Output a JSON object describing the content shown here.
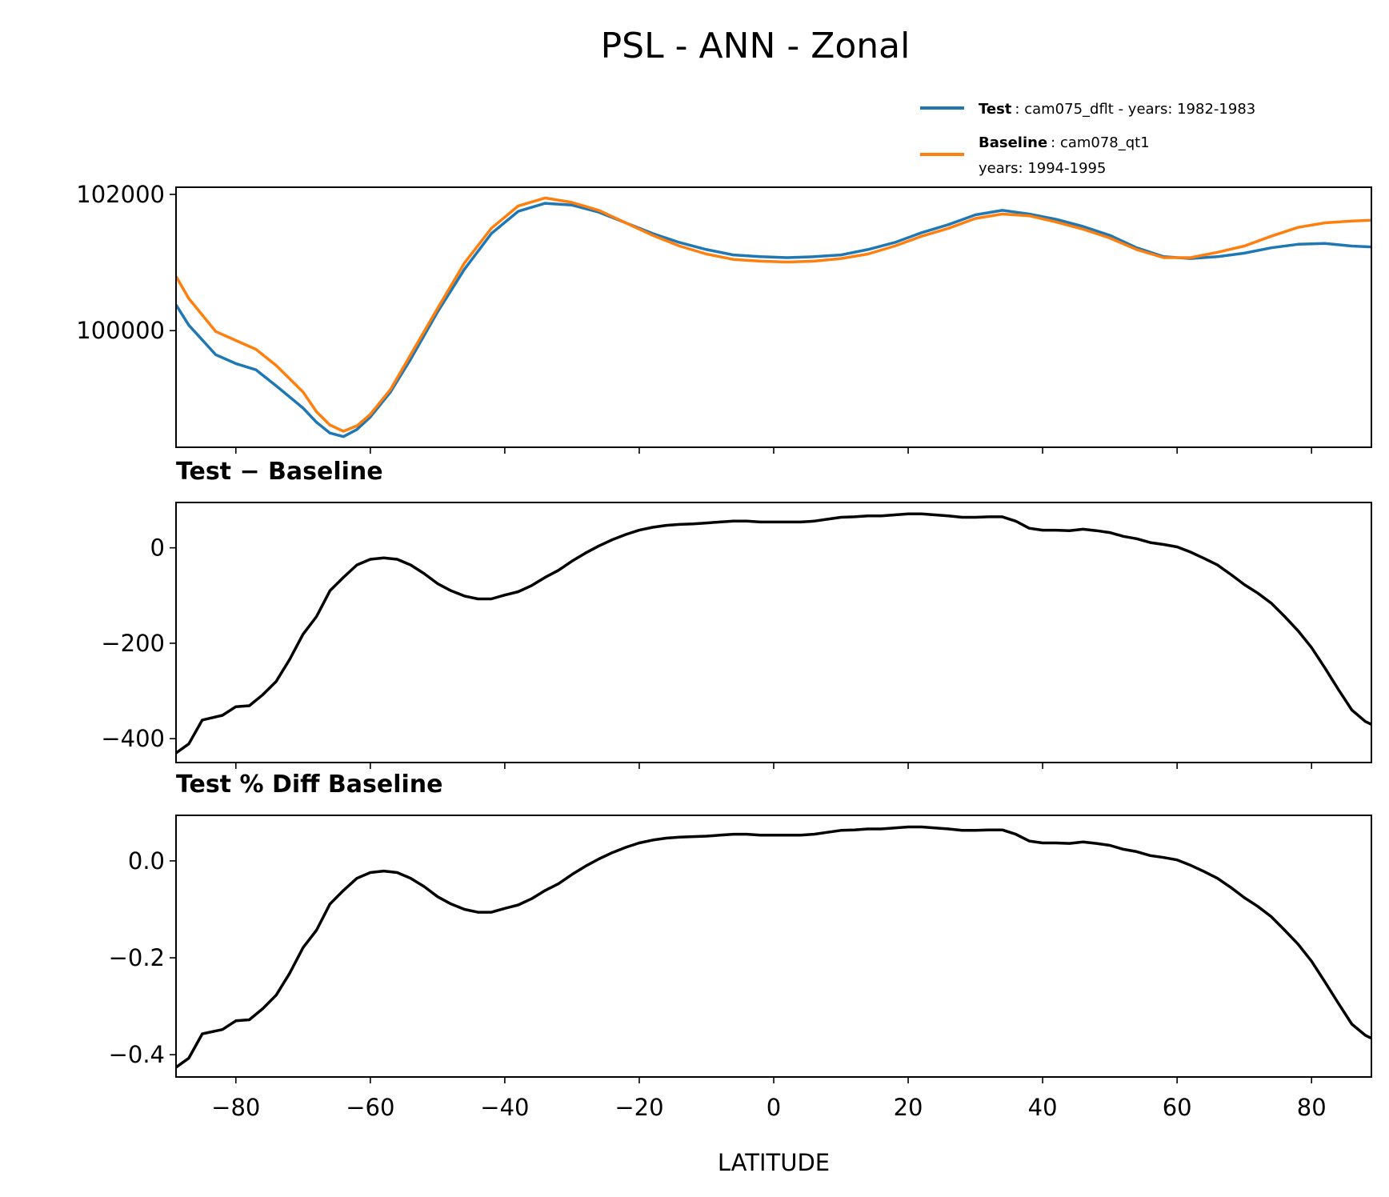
{
  "chart_data": {
    "type": "line",
    "title": "PSL - ANN - Zonal",
    "xlabel": "LATITUDE",
    "xlim": [
      -88.9,
      88.9
    ],
    "xticks": [
      -80,
      -60,
      -40,
      -20,
      0,
      20,
      40,
      60,
      80
    ],
    "xtick_labels": [
      "−80",
      "−60",
      "−40",
      "−20",
      "0",
      "20",
      "40",
      "60",
      "80"
    ],
    "legend": {
      "placement": "top-right",
      "entries": [
        {
          "name_bold": "Test",
          "text": ": cam075_dflt - years: 1982-1983",
          "text2": "",
          "color": "#1f77b4"
        },
        {
          "name_bold": "Baseline",
          "text": ": cam078_qt1",
          "text2": "years: 1994-1995",
          "color": "#ff7f0e"
        }
      ]
    },
    "panels": [
      {
        "subtitle": "",
        "ylim": [
          98288,
          102105
        ],
        "yticks": [
          100000,
          102000
        ],
        "ytick_labels": [
          "100000",
          "102000"
        ],
        "series": [
          {
            "name": "Test",
            "color": "#1f77b4",
            "x": [
              -88.9,
              -87,
              -83,
              -80,
              -77,
              -74,
              -70,
              -68,
              -66,
              -64,
              -62,
              -60,
              -57,
              -54,
              -50,
              -46,
              -42,
              -38,
              -34,
              -30,
              -26,
              -22,
              -18,
              -14,
              -10,
              -6,
              -2,
              2,
              6,
              10,
              14,
              18,
              22,
              26,
              30,
              34,
              38,
              42,
              46,
              50,
              54,
              58,
              62,
              66,
              70,
              74,
              78,
              82,
              86,
              88.9
            ],
            "y": [
              100379,
              100080,
              99647,
              99516,
              99425,
              99190,
              98863,
              98654,
              98497,
              98444,
              98549,
              98732,
              99098,
              99582,
              100275,
              100902,
              101425,
              101752,
              101869,
              101843,
              101739,
              101582,
              101425,
              101294,
              101190,
              101111,
              101085,
              101072,
              101085,
              101111,
              101190,
              101294,
              101438,
              101556,
              101700,
              101765,
              101712,
              101634,
              101530,
              101399,
              101216,
              101085,
              101059,
              101085,
              101137,
              101216,
              101268,
              101281,
              101242,
              101229
            ]
          },
          {
            "name": "Baseline",
            "color": "#ff7f0e",
            "x": [
              -88.9,
              -87,
              -83,
              -80,
              -77,
              -74,
              -70,
              -68,
              -66,
              -64,
              -62,
              -60,
              -57,
              -54,
              -50,
              -46,
              -42,
              -38,
              -34,
              -30,
              -26,
              -22,
              -18,
              -14,
              -10,
              -6,
              -2,
              2,
              6,
              10,
              14,
              18,
              22,
              26,
              30,
              34,
              38,
              42,
              46,
              50,
              54,
              58,
              62,
              66,
              70,
              74,
              78,
              82,
              86,
              88.9
            ],
            "y": [
              100797,
              100471,
              99987,
              99856,
              99725,
              99490,
              99098,
              98810,
              98614,
              98523,
              98601,
              98771,
              99137,
              99647,
              100327,
              100993,
              101503,
              101830,
              101948,
              101882,
              101765,
              101582,
              101399,
              101242,
              101124,
              101046,
              101020,
              101007,
              101020,
              101059,
              101124,
              101242,
              101386,
              101503,
              101647,
              101712,
              101686,
              101595,
              101490,
              101359,
              101190,
              101072,
              101072,
              101150,
              101242,
              101386,
              101516,
              101582,
              101608,
              101621
            ]
          }
        ]
      },
      {
        "subtitle": "Test − Baseline",
        "ylim": [
          -450,
          95
        ],
        "yticks": [
          0,
          -200,
          -400
        ],
        "ytick_labels": [
          "0",
          "−200",
          "−400"
        ],
        "series": [
          {
            "name": "Test - Baseline",
            "color": "#000000",
            "x": [
              -88.9,
              -87,
              -85,
              -82,
              -80,
              -78,
              -76,
              -74,
              -72,
              -70,
              -68,
              -66,
              -64,
              -62,
              -60,
              -58,
              -56,
              -54,
              -52,
              -50,
              -48,
              -46,
              -44,
              -42,
              -40,
              -38,
              -36,
              -34,
              -32,
              -30,
              -28,
              -26,
              -24,
              -22,
              -20,
              -18,
              -16,
              -14,
              -12,
              -10,
              -8,
              -6,
              -4,
              -2,
              0,
              2,
              4,
              6,
              8,
              10,
              12,
              14,
              16,
              18,
              20,
              22,
              24,
              26,
              28,
              30,
              32,
              34,
              36,
              38,
              40,
              42,
              44,
              46,
              48,
              50,
              52,
              54,
              56,
              58,
              60,
              62,
              64,
              66,
              68,
              70,
              72,
              74,
              76,
              78,
              80,
              82,
              84,
              86,
              88,
              88.9
            ],
            "y": [
              -430,
              -411,
              -361,
              -351,
              -333,
              -331,
              -308,
              -280,
              -234,
              -181,
              -144,
              -90,
              -62,
              -36,
              -24,
              -21,
              -24,
              -36,
              -54,
              -75,
              -90,
              -101,
              -107,
              -107,
              -99,
              -92,
              -79,
              -62,
              -47,
              -28,
              -11,
              4,
              17,
              28,
              37,
              43,
              47,
              49,
              50,
              52,
              54,
              56,
              56,
              54,
              54,
              54,
              54,
              56,
              60,
              64,
              65,
              67,
              67,
              69,
              71,
              71,
              69,
              67,
              64,
              64,
              65,
              65,
              56,
              41,
              37,
              37,
              36,
              39,
              36,
              32,
              24,
              19,
              11,
              7,
              2,
              -9,
              -22,
              -36,
              -56,
              -77,
              -95,
              -116,
              -144,
              -174,
              -209,
              -252,
              -297,
              -340,
              -364,
              -370
            ]
          }
        ]
      },
      {
        "subtitle": "Test % Diff Baseline",
        "ylim": [
          -0.446,
          0.094
        ],
        "yticks": [
          0.0,
          -0.2,
          -0.4
        ],
        "ytick_labels": [
          "0.0",
          "−0.2",
          "−0.4"
        ],
        "series": [
          {
            "name": "Test % Diff Baseline",
            "color": "#000000",
            "x": [
              -88.9,
              -87,
              -85,
              -82,
              -80,
              -78,
              -76,
              -74,
              -72,
              -70,
              -68,
              -66,
              -64,
              -62,
              -60,
              -58,
              -56,
              -54,
              -52,
              -50,
              -48,
              -46,
              -44,
              -42,
              -40,
              -38,
              -36,
              -34,
              -32,
              -30,
              -28,
              -26,
              -24,
              -22,
              -20,
              -18,
              -16,
              -14,
              -12,
              -10,
              -8,
              -6,
              -4,
              -2,
              0,
              2,
              4,
              6,
              8,
              10,
              12,
              14,
              16,
              18,
              20,
              22,
              24,
              26,
              28,
              30,
              32,
              34,
              36,
              38,
              40,
              42,
              44,
              46,
              48,
              50,
              52,
              54,
              56,
              58,
              60,
              62,
              64,
              66,
              68,
              70,
              72,
              74,
              76,
              78,
              80,
              82,
              84,
              86,
              88,
              88.9
            ],
            "y": [
              -0.426,
              -0.407,
              -0.357,
              -0.348,
              -0.33,
              -0.328,
              -0.305,
              -0.277,
              -0.232,
              -0.179,
              -0.143,
              -0.089,
              -0.061,
              -0.036,
              -0.024,
              -0.021,
              -0.024,
              -0.036,
              -0.053,
              -0.074,
              -0.089,
              -0.1,
              -0.106,
              -0.106,
              -0.098,
              -0.091,
              -0.078,
              -0.061,
              -0.047,
              -0.028,
              -0.011,
              0.004,
              0.017,
              0.028,
              0.037,
              0.043,
              0.047,
              0.049,
              0.05,
              0.051,
              0.053,
              0.055,
              0.055,
              0.053,
              0.053,
              0.053,
              0.053,
              0.055,
              0.059,
              0.063,
              0.064,
              0.066,
              0.066,
              0.068,
              0.07,
              0.07,
              0.068,
              0.066,
              0.063,
              0.063,
              0.064,
              0.064,
              0.055,
              0.041,
              0.037,
              0.037,
              0.036,
              0.039,
              0.036,
              0.032,
              0.024,
              0.019,
              0.011,
              0.007,
              0.002,
              -0.009,
              -0.022,
              -0.036,
              -0.055,
              -0.076,
              -0.094,
              -0.115,
              -0.143,
              -0.172,
              -0.207,
              -0.25,
              -0.294,
              -0.337,
              -0.36,
              -0.366
            ]
          }
        ]
      }
    ]
  }
}
